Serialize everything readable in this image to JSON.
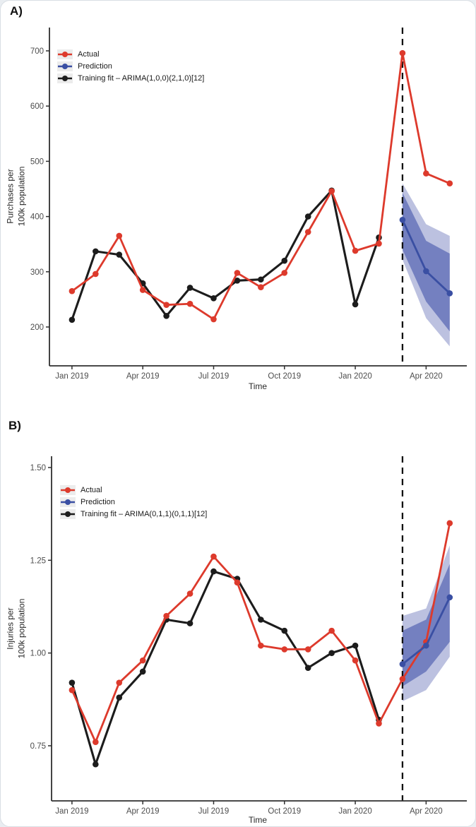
{
  "figure": {
    "background": "#ffffff",
    "page_background": "#e9edf1",
    "border_color": "#d9dee4"
  },
  "colors": {
    "actual": "#dd3a2c",
    "prediction": "#3a4fa3",
    "training": "#1c1c1c",
    "band_80": "#7480c0",
    "band_95": "#bcc1e0",
    "axis": "#2f2f2f",
    "tick_text": "#4d4d4d",
    "dashed_line": "#111111",
    "legend_key_background": "#ececec"
  },
  "chart_data": [
    {
      "type": "line",
      "panel_label": "A)",
      "xlabel": "Time",
      "ylabel": "Purchases per 100k population",
      "ylabel_lines": [
        "Purchases per",
        "100k population"
      ],
      "x": [
        "Jan 2019",
        "Feb 2019",
        "Mar 2019",
        "Apr 2019",
        "May 2019",
        "Jun 2019",
        "Jul 2019",
        "Aug 2019",
        "Sep 2019",
        "Oct 2019",
        "Nov 2019",
        "Dec 2019",
        "Jan 2020",
        "Feb 2020",
        "Mar 2020",
        "Apr 2020",
        "May 2020"
      ],
      "x_ticks": [
        {
          "label": "Jan 2019",
          "month_index": 0
        },
        {
          "label": "Apr 2019",
          "month_index": 3
        },
        {
          "label": "Jul 2019",
          "month_index": 6
        },
        {
          "label": "Oct 2019",
          "month_index": 9
        },
        {
          "label": "Jan 2020",
          "month_index": 12
        },
        {
          "label": "Apr 2020",
          "month_index": 15
        }
      ],
      "y_ticks": [
        {
          "label": "200",
          "value": 200
        },
        {
          "label": "300",
          "value": 300
        },
        {
          "label": "400",
          "value": 400
        },
        {
          "label": "500",
          "value": 500
        },
        {
          "label": "600",
          "value": 600
        },
        {
          "label": "700",
          "value": 700
        }
      ],
      "ylim": [
        130,
        742
      ],
      "grid": false,
      "legend_position": "top-left-inside",
      "forecast_start_month_index": 14,
      "series": [
        {
          "name": "Actual",
          "role": "actual",
          "color": "#dd3a2c",
          "values": [
            265,
            296,
            365,
            267,
            240,
            242,
            214,
            298,
            272,
            298,
            372,
            446,
            338,
            351,
            696,
            478,
            460
          ]
        },
        {
          "name": "Prediction",
          "role": "prediction",
          "color": "#3a4fa3",
          "values": [
            null,
            null,
            null,
            null,
            null,
            null,
            null,
            null,
            null,
            null,
            null,
            null,
            null,
            null,
            394,
            301,
            261
          ]
        },
        {
          "name": "Training fit – ARIMA(1,0,0)(2,1,0)[12]",
          "role": "training",
          "color": "#1c1c1c",
          "values": [
            213,
            337,
            331,
            279,
            220,
            271,
            252,
            284,
            286,
            320,
            400,
            447,
            241,
            362,
            null,
            null,
            null
          ]
        }
      ],
      "prediction_intervals": {
        "months": [
          14,
          15,
          16
        ],
        "pi80": {
          "lower": [
            340,
            246,
            192
          ],
          "upper": [
            443,
            356,
            333
          ]
        },
        "pi95": {
          "lower": [
            322,
            216,
            165
          ],
          "upper": [
            460,
            386,
            365
          ]
        }
      }
    },
    {
      "type": "line",
      "panel_label": "B)",
      "xlabel": "Time",
      "ylabel": "Injuries per 100k population",
      "ylabel_lines": [
        "Injuries per",
        "100k population"
      ],
      "x": [
        "Jan 2019",
        "Feb 2019",
        "Mar 2019",
        "Apr 2019",
        "May 2019",
        "Jun 2019",
        "Jul 2019",
        "Aug 2019",
        "Sep 2019",
        "Oct 2019",
        "Nov 2019",
        "Dec 2019",
        "Jan 2020",
        "Feb 2020",
        "Mar 2020",
        "Apr 2020",
        "May 2020"
      ],
      "x_ticks": [
        {
          "label": "Jan 2019",
          "month_index": 0
        },
        {
          "label": "Apr 2019",
          "month_index": 3
        },
        {
          "label": "Jul 2019",
          "month_index": 6
        },
        {
          "label": "Oct 2019",
          "month_index": 9
        },
        {
          "label": "Jan 2020",
          "month_index": 12
        },
        {
          "label": "Apr 2020",
          "month_index": 15
        }
      ],
      "y_ticks": [
        {
          "label": "0.75",
          "value": 0.75
        },
        {
          "label": "1.00",
          "value": 1.0
        },
        {
          "label": "1.25",
          "value": 1.25
        },
        {
          "label": "1.50",
          "value": 1.5
        }
      ],
      "ylim": [
        0.6,
        1.53
      ],
      "grid": false,
      "legend_position": "top-left-inside",
      "forecast_start_month_index": 14,
      "series": [
        {
          "name": "Actual",
          "role": "actual",
          "color": "#dd3a2c",
          "values": [
            0.9,
            0.76,
            0.92,
            0.98,
            1.1,
            1.16,
            1.26,
            1.19,
            1.02,
            1.01,
            1.01,
            1.06,
            0.98,
            0.81,
            0.93,
            1.03,
            1.35
          ]
        },
        {
          "name": "Prediction",
          "role": "prediction",
          "color": "#3a4fa3",
          "values": [
            null,
            null,
            null,
            null,
            null,
            null,
            null,
            null,
            null,
            null,
            null,
            null,
            null,
            null,
            0.97,
            1.02,
            1.15
          ]
        },
        {
          "name": "Training fit – ARIMA(0,1,1)(0,1,1)[12]",
          "role": "training",
          "color": "#1c1c1c",
          "values": [
            0.92,
            0.7,
            0.88,
            0.95,
            1.09,
            1.08,
            1.22,
            1.2,
            1.09,
            1.06,
            0.96,
            1.0,
            1.02,
            0.82,
            null,
            null,
            null
          ]
        }
      ],
      "prediction_intervals": {
        "months": [
          14,
          15,
          16
        ],
        "pi80": {
          "lower": [
            0.91,
            0.95,
            1.03
          ],
          "upper": [
            1.06,
            1.09,
            1.24
          ]
        },
        "pi95": {
          "lower": [
            0.87,
            0.9,
            0.99
          ],
          "upper": [
            1.1,
            1.12,
            1.29
          ]
        }
      }
    }
  ]
}
